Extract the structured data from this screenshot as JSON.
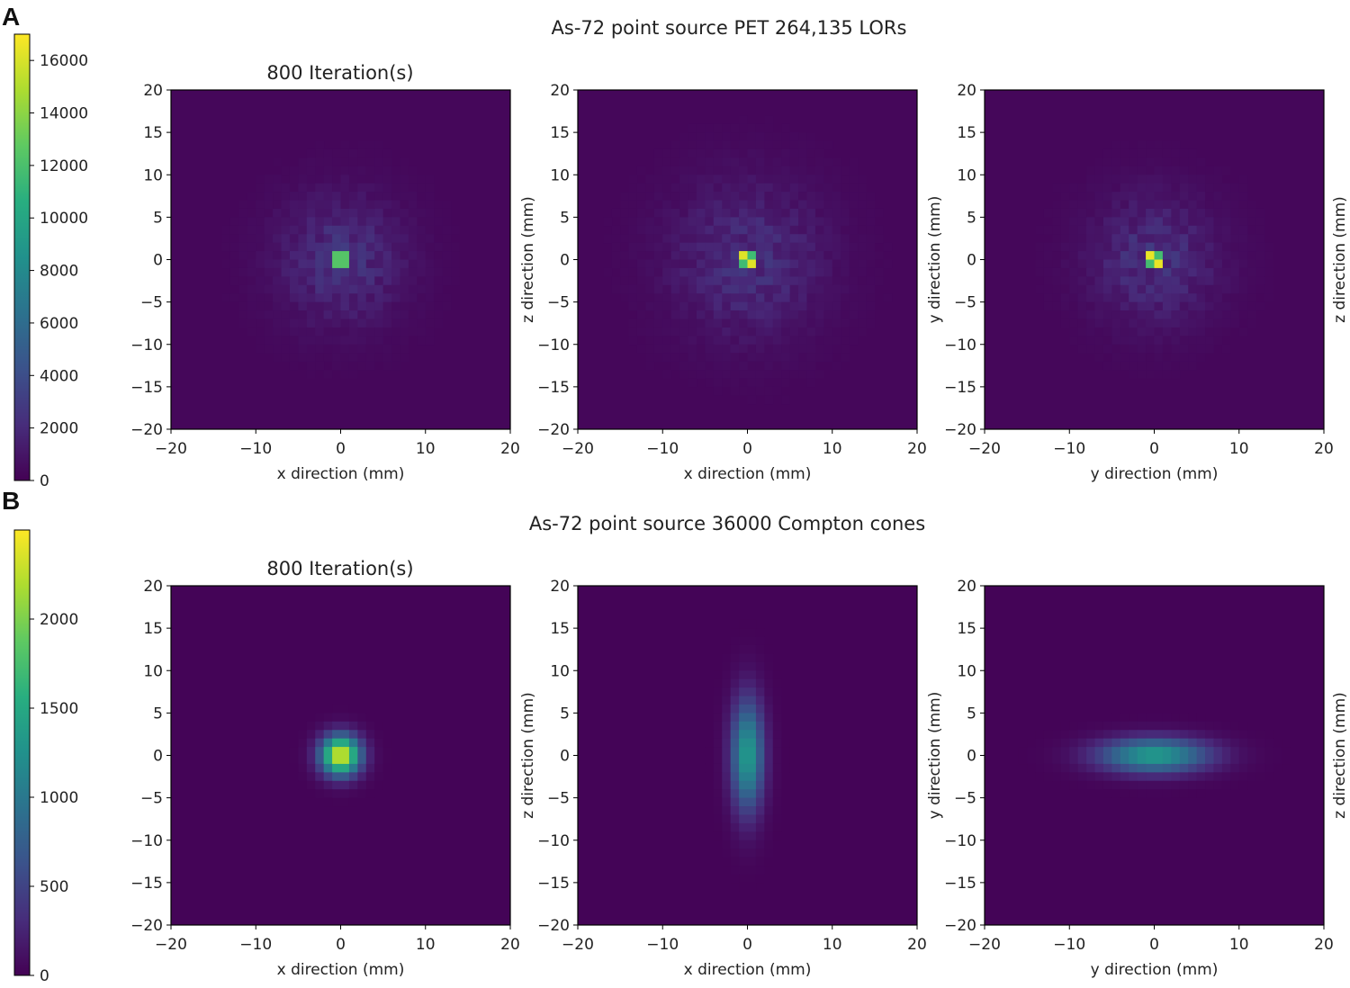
{
  "panel_labels": [
    "A",
    "B"
  ],
  "chart_data": [
    {
      "type": "heatmap",
      "panel": "A",
      "title": "As-72 point source PET 264,135 LORs",
      "iteration_label": "800 Iteration(s)",
      "colormap": "viridis",
      "colorbar": {
        "range": [
          0,
          17000
        ],
        "ticks": [
          0,
          2000,
          4000,
          6000,
          8000,
          10000,
          12000,
          14000,
          16000
        ]
      },
      "xlim": [
        -20,
        20
      ],
      "ylim": [
        -20,
        20
      ],
      "xticks": [
        -20,
        -10,
        0,
        10,
        20
      ],
      "yticks": [
        -20,
        -15,
        -10,
        -5,
        0,
        5,
        10,
        15,
        20
      ],
      "bin_mm": 1,
      "background": 300,
      "panels": [
        {
          "xlabel": "x direction (mm)",
          "ylabel": "",
          "peak": 12400,
          "core": "single",
          "halo_value": 2200,
          "halo_extent": 5
        },
        {
          "xlabel": "x direction (mm)",
          "ylabel": "z direction (mm)",
          "peak": 16200,
          "core": "checker",
          "halo_value": 2100,
          "halo_extent": 6
        },
        {
          "xlabel": "y direction (mm)",
          "ylabel": "y direction (mm)",
          "right_label": "z direction (mm)",
          "peak": 16500,
          "core": "checker",
          "halo_value": 2200,
          "halo_extent": 5
        }
      ]
    },
    {
      "type": "heatmap",
      "panel": "B",
      "title": "As-72 point source 36000 Compton cones",
      "iteration_label": "800 Iteration(s)",
      "colormap": "viridis",
      "colorbar": {
        "range": [
          0,
          2500
        ],
        "ticks": [
          0,
          500,
          1000,
          1500,
          2000
        ]
      },
      "xlim": [
        -20,
        20
      ],
      "ylim": [
        -20,
        20
      ],
      "xticks": [
        -20,
        -10,
        0,
        10,
        20
      ],
      "yticks": [
        -20,
        -15,
        -10,
        -5,
        0,
        5,
        10,
        15,
        20
      ],
      "bin_mm": 1,
      "background": 20,
      "panels": [
        {
          "xlabel": "x direction (mm)",
          "ylabel": "",
          "peak": 2400,
          "sigma_x": 1.6,
          "sigma_y": 1.6
        },
        {
          "xlabel": "x direction (mm)",
          "ylabel": "z direction (mm)",
          "peak": 1350,
          "sigma_x": 1.3,
          "sigma_y": 4.5
        },
        {
          "xlabel": "y direction (mm)",
          "ylabel": "y direction (mm)",
          "right_label": "z direction (mm)",
          "peak": 1350,
          "sigma_x": 4.5,
          "sigma_y": 1.4
        }
      ]
    }
  ]
}
